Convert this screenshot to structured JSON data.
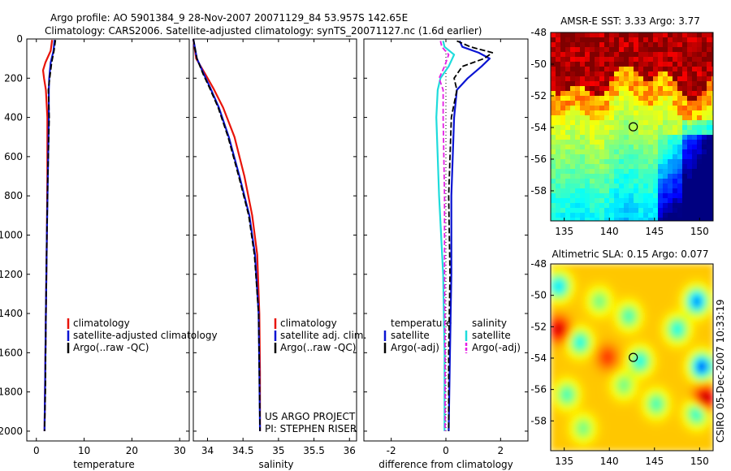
{
  "header": {
    "line1": "Argo profile: AO 5901384_9 28-Nov-2007 20071129_84 53.957S 142.65E",
    "line2": "Climatology: CARS2006. Satellite-adjusted climatology: synTS_20071127.nc (1.6d earlier)"
  },
  "side_label": "CSIRO 05-Dec-2007 10:33:19",
  "colors": {
    "climatology": "#e8140a",
    "satellite": "#0a14d2",
    "argo": "#000000",
    "salinity_satellite": "#1edcdc",
    "salinity_argo": "#e61ee6"
  },
  "chart_data": [
    {
      "type": "line",
      "id": "temperature",
      "xlabel": "temperature",
      "xlim": [
        -2,
        32
      ],
      "ylim": [
        2050,
        0
      ],
      "xticks": [
        0,
        10,
        20,
        30
      ],
      "yticks": [
        0,
        200,
        400,
        600,
        800,
        1000,
        1200,
        1400,
        1600,
        1800,
        2000
      ],
      "legend": [
        "climatology",
        "satellite-adjusted climatology",
        "Argo(..raw -QC)"
      ],
      "series": [
        {
          "name": "climatology",
          "x": [
            3.3,
            3.0,
            1.9,
            1.4,
            1.6,
            2.0,
            2.3,
            2.3,
            2.2,
            2.0,
            1.8,
            1.7
          ],
          "y": [
            5,
            60,
            120,
            160,
            200,
            260,
            400,
            700,
            1000,
            1400,
            1800,
            2000
          ]
        },
        {
          "name": "satellite-adjusted climatology",
          "x": [
            3.8,
            3.6,
            3.0,
            2.7,
            2.6,
            2.6,
            2.4,
            2.2,
            2.0,
            1.8,
            1.7
          ],
          "y": [
            5,
            60,
            120,
            200,
            260,
            400,
            700,
            1000,
            1400,
            1800,
            2000
          ]
        },
        {
          "name": "Argo(..raw -QC)",
          "x": [
            4.0,
            3.7,
            3.2,
            2.8,
            2.5,
            2.7,
            2.4,
            2.2,
            2.0,
            1.9,
            1.7
          ],
          "y": [
            5,
            60,
            120,
            200,
            260,
            400,
            700,
            1000,
            1400,
            1800,
            2000
          ]
        }
      ]
    },
    {
      "type": "line",
      "id": "salinity",
      "xlabel": "salinity",
      "xlim": [
        33.8,
        36.1
      ],
      "ylim": [
        2050,
        0
      ],
      "xticks": [
        34,
        34.5,
        35,
        35.5,
        36
      ],
      "xticklabels": [
        "34",
        "34.5",
        "35",
        "35.5",
        "36"
      ],
      "legend": [
        "climatology",
        "satellite adj. clim.",
        "Argo(..raw -QC)"
      ],
      "annotation": [
        "US ARGO PROJECT",
        "PI: STEPHEN RISER"
      ],
      "series": [
        {
          "name": "climatology",
          "x": [
            33.8,
            33.84,
            33.97,
            34.08,
            34.22,
            34.38,
            34.52,
            34.63,
            34.7,
            34.73,
            34.74,
            34.74
          ],
          "y": [
            0,
            100,
            180,
            250,
            350,
            500,
            700,
            900,
            1100,
            1400,
            1700,
            2000
          ]
        },
        {
          "name": "satellite adj. clim.",
          "x": [
            33.8,
            33.85,
            33.95,
            34.04,
            34.16,
            34.3,
            34.45,
            34.59,
            34.67,
            34.72,
            34.73,
            34.74
          ],
          "y": [
            0,
            100,
            180,
            250,
            350,
            500,
            700,
            900,
            1100,
            1400,
            1700,
            2000
          ]
        },
        {
          "name": "Argo(..raw -QC)",
          "x": [
            33.8,
            33.85,
            33.94,
            34.03,
            34.15,
            34.29,
            34.44,
            34.58,
            34.66,
            34.72,
            34.73,
            34.74
          ],
          "y": [
            0,
            100,
            180,
            250,
            350,
            500,
            700,
            900,
            1100,
            1400,
            1700,
            2000
          ]
        }
      ]
    },
    {
      "type": "line",
      "id": "difference",
      "xlabel": "difference from climatology",
      "xlim": [
        -3.0,
        3.0
      ],
      "ylim": [
        2050,
        0
      ],
      "xticks": [
        -2,
        0,
        2
      ],
      "legend": [
        "temperature",
        "satellite",
        "Argo(-adj)",
        "salinity",
        "satellite",
        "Argo(-adj)"
      ],
      "series": [
        {
          "name": "temperature satellite",
          "x": [
            0.5,
            0.6,
            1.2,
            1.6,
            1.3,
            0.8,
            0.4,
            0.3,
            0.2,
            0.2,
            0.15,
            0.1
          ],
          "y": [
            10,
            40,
            70,
            100,
            140,
            200,
            260,
            400,
            800,
            1200,
            1600,
            2000
          ]
        },
        {
          "name": "temperature Argo(-adj)",
          "x": [
            0.4,
            0.9,
            1.7,
            1.4,
            0.6,
            0.3,
            0.4,
            0.2,
            0.1,
            0.15,
            0.1,
            0.1
          ],
          "y": [
            10,
            40,
            70,
            100,
            140,
            200,
            260,
            400,
            800,
            1200,
            1600,
            2000
          ]
        },
        {
          "name": "salinity satellite",
          "x": [
            -0.1,
            -0.05,
            0.3,
            0.1,
            -0.2,
            -0.3,
            -0.35,
            -0.25,
            -0.1,
            -0.05,
            -0.05
          ],
          "y": [
            10,
            40,
            80,
            140,
            200,
            260,
            400,
            800,
            1200,
            1600,
            2000
          ]
        },
        {
          "name": "salinity Argo(-adj)",
          "x": [
            -0.2,
            -0.15,
            0.1,
            -0.05,
            -0.25,
            -0.1,
            -0.1,
            -0.05,
            -0.05,
            -0.03,
            -0.03
          ],
          "y": [
            10,
            40,
            80,
            140,
            200,
            260,
            400,
            800,
            1200,
            1600,
            2000
          ]
        }
      ]
    },
    {
      "type": "heatmap",
      "id": "sst_map",
      "title": "AMSR-E SST: 3.33 Argo: 3.77",
      "xlim": [
        133.5,
        151.5
      ],
      "ylim": [
        -59.9,
        -48
      ],
      "xticks": [
        135,
        140,
        145,
        150
      ],
      "yticks": [
        -48,
        -50,
        -52,
        -54,
        -56,
        -58
      ],
      "marker": {
        "lon": 142.65,
        "lat": -53.957
      }
    },
    {
      "type": "heatmap",
      "id": "sla_map",
      "title": "Altimetric SLA: 0.15 Argo: 0.077",
      "xlim": [
        133.5,
        151.5
      ],
      "ylim": [
        -59.9,
        -48
      ],
      "xticks": [
        135,
        140,
        145,
        150
      ],
      "yticks": [
        -48,
        -50,
        -52,
        -54,
        -56,
        -58
      ],
      "marker": {
        "lon": 142.65,
        "lat": -53.957
      }
    }
  ]
}
